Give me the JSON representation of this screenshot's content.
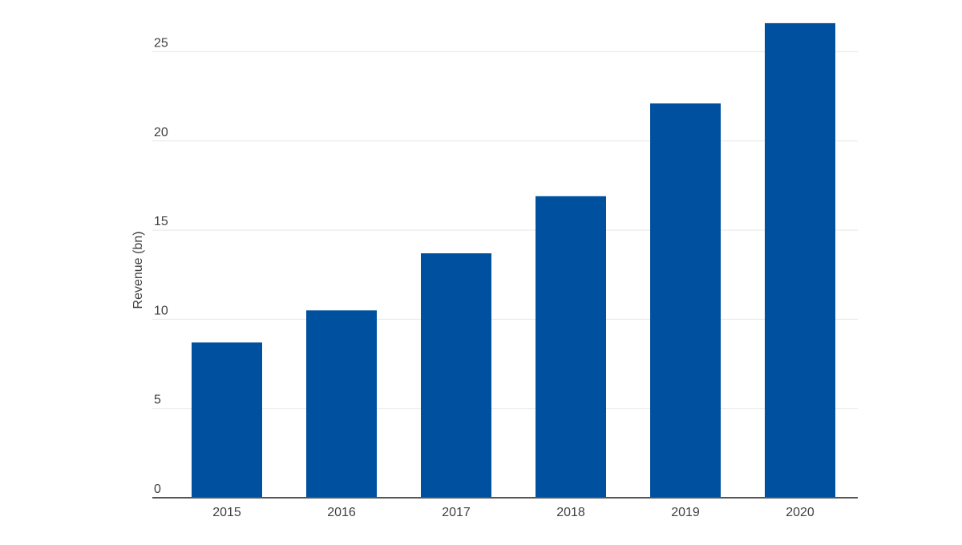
{
  "chart_data": {
    "type": "bar",
    "title": "",
    "xlabel": "",
    "ylabel": "Revenue (bn)",
    "categories": [
      "2015",
      "2016",
      "2017",
      "2018",
      "2019",
      "2020"
    ],
    "values": [
      8.7,
      10.5,
      13.7,
      16.9,
      22.1,
      26.6
    ],
    "ylim": [
      0,
      27
    ],
    "yticks": [
      0,
      5,
      10,
      15,
      20,
      25
    ],
    "grid": true,
    "legend": "none",
    "colors": {
      "bar": "#0050a0",
      "grid": "#ececec",
      "axis": "#555555",
      "text": "#3f3f3f"
    }
  }
}
